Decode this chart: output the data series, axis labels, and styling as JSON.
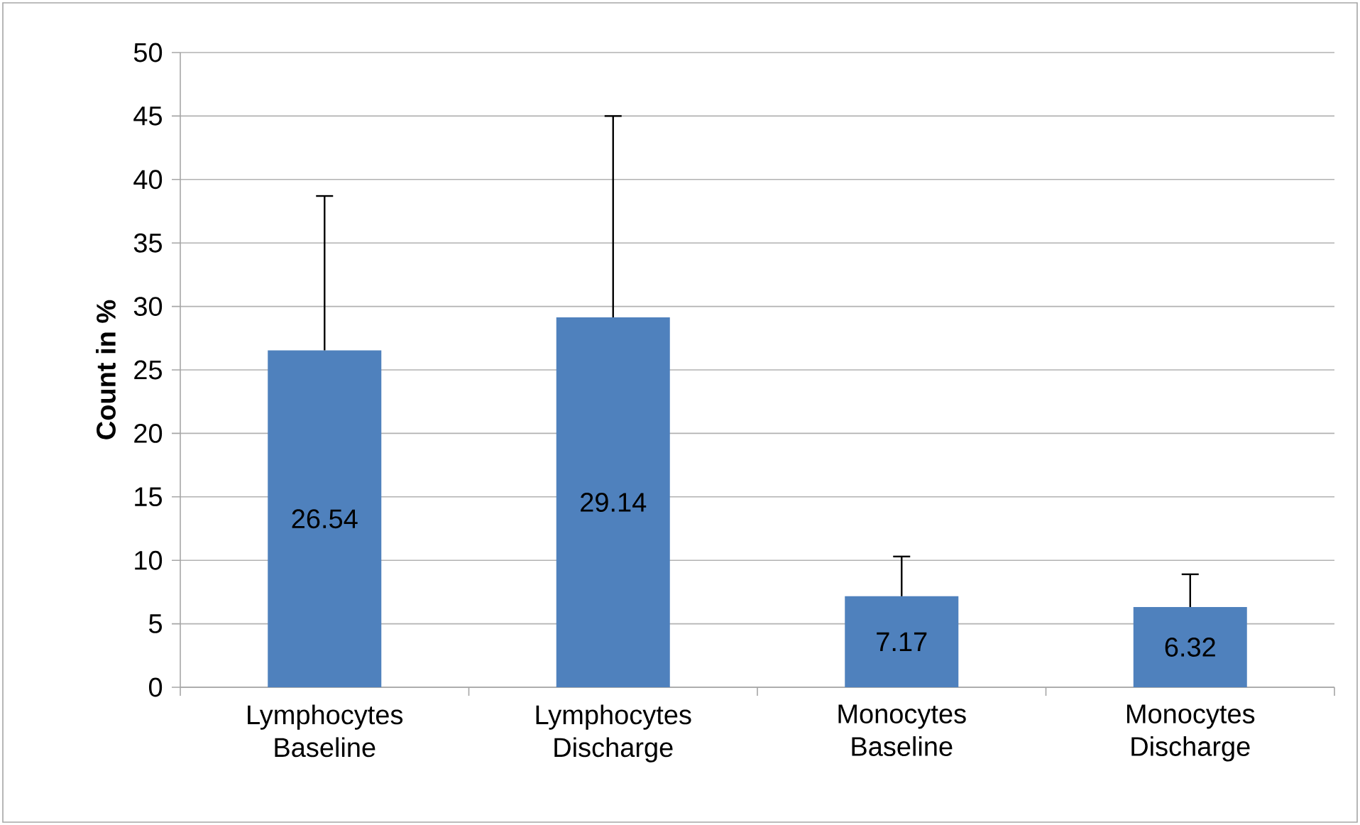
{
  "chart_data": {
    "type": "bar",
    "ylabel": "Count in %",
    "categories": [
      "Lymphocytes Baseline",
      "Lymphocytes Discharge",
      "Monocytes Baseline",
      "Monocytes Discharge"
    ],
    "values": [
      26.54,
      29.14,
      7.17,
      6.32
    ],
    "errors": [
      [
        26.54,
        38.7
      ],
      [
        29.14,
        45
      ],
      [
        7.17,
        10.3
      ],
      [
        6.32,
        8.9
      ]
    ],
    "color": "#4f81bd",
    "data_labels": true,
    "grid": "y",
    "ylim": [
      0,
      50
    ],
    "yticks": [
      0,
      5,
      10,
      15,
      20,
      25,
      30,
      35,
      40,
      45,
      50
    ]
  }
}
